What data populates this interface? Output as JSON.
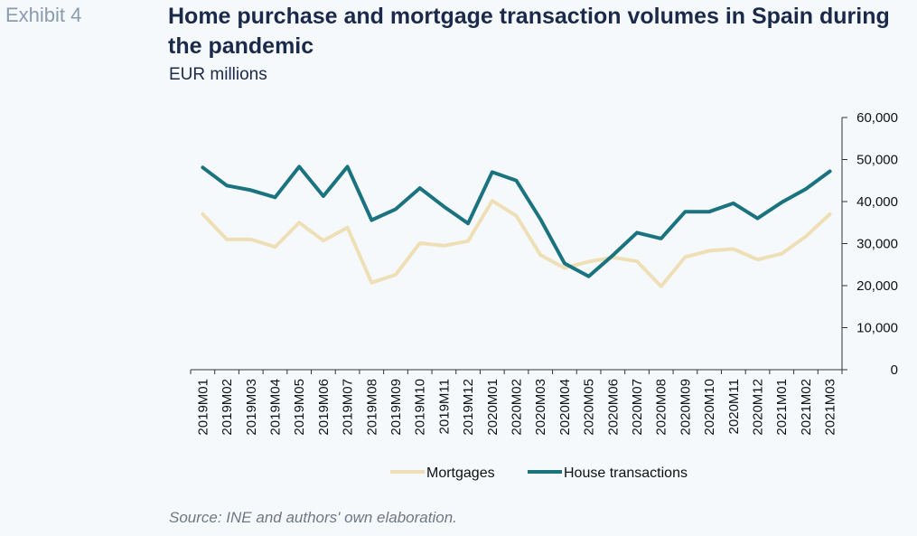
{
  "header": {
    "exhibit": "Exhibit 4",
    "title": "Home purchase and mortgage transaction volumes in Spain during the pandemic",
    "subtitle": "EUR millions"
  },
  "footer": {
    "source": "Source: INE and authors' own elaboration."
  },
  "chart_data": {
    "type": "line",
    "title": "Home purchase and mortgage transaction volumes in Spain during the pandemic",
    "ylabel": "EUR millions",
    "ylim": [
      0,
      60000
    ],
    "yticks": [
      0,
      10000,
      20000,
      30000,
      40000,
      50000,
      60000
    ],
    "ytick_labels": [
      "0",
      "10,000",
      "20,000",
      "30,000",
      "40,000",
      "50,000",
      "60,000"
    ],
    "y_axis_position": "right",
    "grid": false,
    "legend": "bottom",
    "categories": [
      "2019M01",
      "2019M02",
      "2019M03",
      "2019M04",
      "2019M05",
      "2019M06",
      "2019M07",
      "2019M08",
      "2019M09",
      "2019M10",
      "2019M11",
      "2019M12",
      "2020M01",
      "2020M02",
      "2020M03",
      "2020M04",
      "2020M05",
      "2020M06",
      "2020M07",
      "2020M08",
      "2020M09",
      "2020M10",
      "2020M11",
      "2020M12",
      "2021M01",
      "2021M02",
      "2021M03"
    ],
    "series": [
      {
        "name": "Mortgages",
        "color": "#efdfb7",
        "values": [
          37000,
          31000,
          31000,
          29200,
          35000,
          30700,
          33800,
          20700,
          22600,
          30100,
          29500,
          30600,
          40200,
          36600,
          27300,
          24200,
          25700,
          26700,
          25800,
          19800,
          26800,
          28300,
          28700,
          26200,
          27600,
          31700,
          37000
        ]
      },
      {
        "name": "House transactions",
        "color": "#1a737e",
        "values": [
          48100,
          43800,
          42700,
          41000,
          48300,
          41300,
          48300,
          35600,
          38200,
          43200,
          38800,
          34800,
          47000,
          45000,
          35800,
          25300,
          22200,
          27200,
          32600,
          31200,
          37600,
          37600,
          39600,
          36000,
          39800,
          43000,
          47200
        ]
      }
    ]
  }
}
